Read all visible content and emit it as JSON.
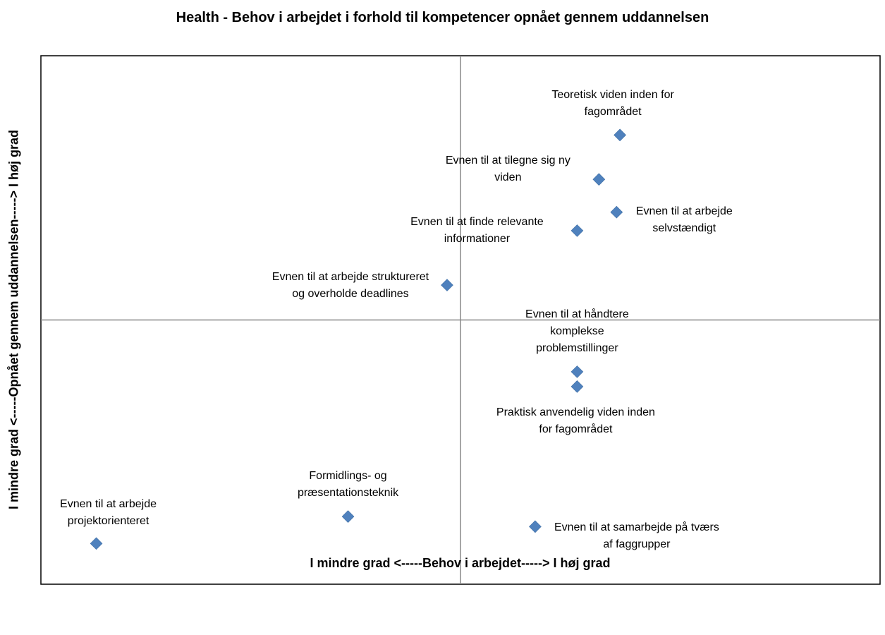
{
  "chart_data": {
    "type": "scatter",
    "title": "Health - Behov i arbejdet i forhold til kompetencer opnået gennem uddannelsen",
    "x_label": "I mindre grad <-----Behov i arbejdet-----> I høj grad",
    "y_label": "I mindre grad <-----Opnået gennem uddannelsen-----> I høj grad",
    "xlim": [
      0,
      100
    ],
    "ylim": [
      0,
      100
    ],
    "color": "#4f81bd",
    "point_labels": [
      "Teoretisk viden inden for fagområdet",
      "Evnen til at tilegne sig ny viden",
      "Evnen til at arbejde selvstændigt",
      "Evnen til at finde relevante informationer",
      "Evnen til at arbejde struktureret og overholde deadlines",
      "Evnen til at håndtere komplekse problemstillinger",
      "Praktisk anvendelig viden inden for fagområdet",
      "Formidlings- og præsentationsteknik",
      "Evnen til at samarbejde på tværs af faggrupper",
      "Evnen til at arbejde projektorienteret"
    ],
    "x": [
      69.0,
      66.5,
      68.6,
      63.9,
      48.4,
      63.9,
      63.9,
      36.6,
      58.9,
      6.6
    ],
    "values": [
      85.0,
      76.6,
      70.4,
      66.9,
      56.6,
      40.2,
      37.4,
      12.8,
      10.9,
      7.7
    ]
  }
}
